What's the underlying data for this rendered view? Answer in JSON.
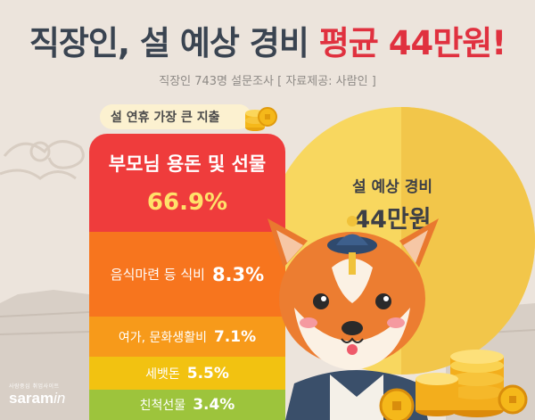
{
  "title": {
    "part1": "직장인, 설 예상 경비 ",
    "part2": "평균 44만원!"
  },
  "subtitle": "직장인 743명 설문조사 [ 자료제공: 사람인 ]",
  "chart_heading": "설 연휴 가장 큰 지출",
  "budget": {
    "label": "설 예상 경비",
    "value": "44만원"
  },
  "chart_data": {
    "type": "bar",
    "title": "설 연휴 가장 큰 지출",
    "categories": [
      "부모님 용돈 및 선물",
      "음식마련 등 식비",
      "여가, 문화생활비",
      "세뱃돈",
      "친척선물"
    ],
    "values": [
      66.9,
      8.3,
      7.1,
      5.5,
      3.4
    ],
    "labels": [
      "66.9%",
      "8.3%",
      "7.1%",
      "5.5%",
      "3.4%"
    ],
    "unit": "%"
  },
  "brand": {
    "tagline": "사람중심 취업사이트",
    "name_a": "saram",
    "name_b": "in"
  },
  "colors": {
    "bar1": "#ef3c3c",
    "bar2": "#f7751e",
    "bar3": "#f79a1a",
    "bar4": "#f2c211",
    "bar5": "#9dc43c",
    "highlight": "#e0313f",
    "moon": "#f8d75f"
  }
}
